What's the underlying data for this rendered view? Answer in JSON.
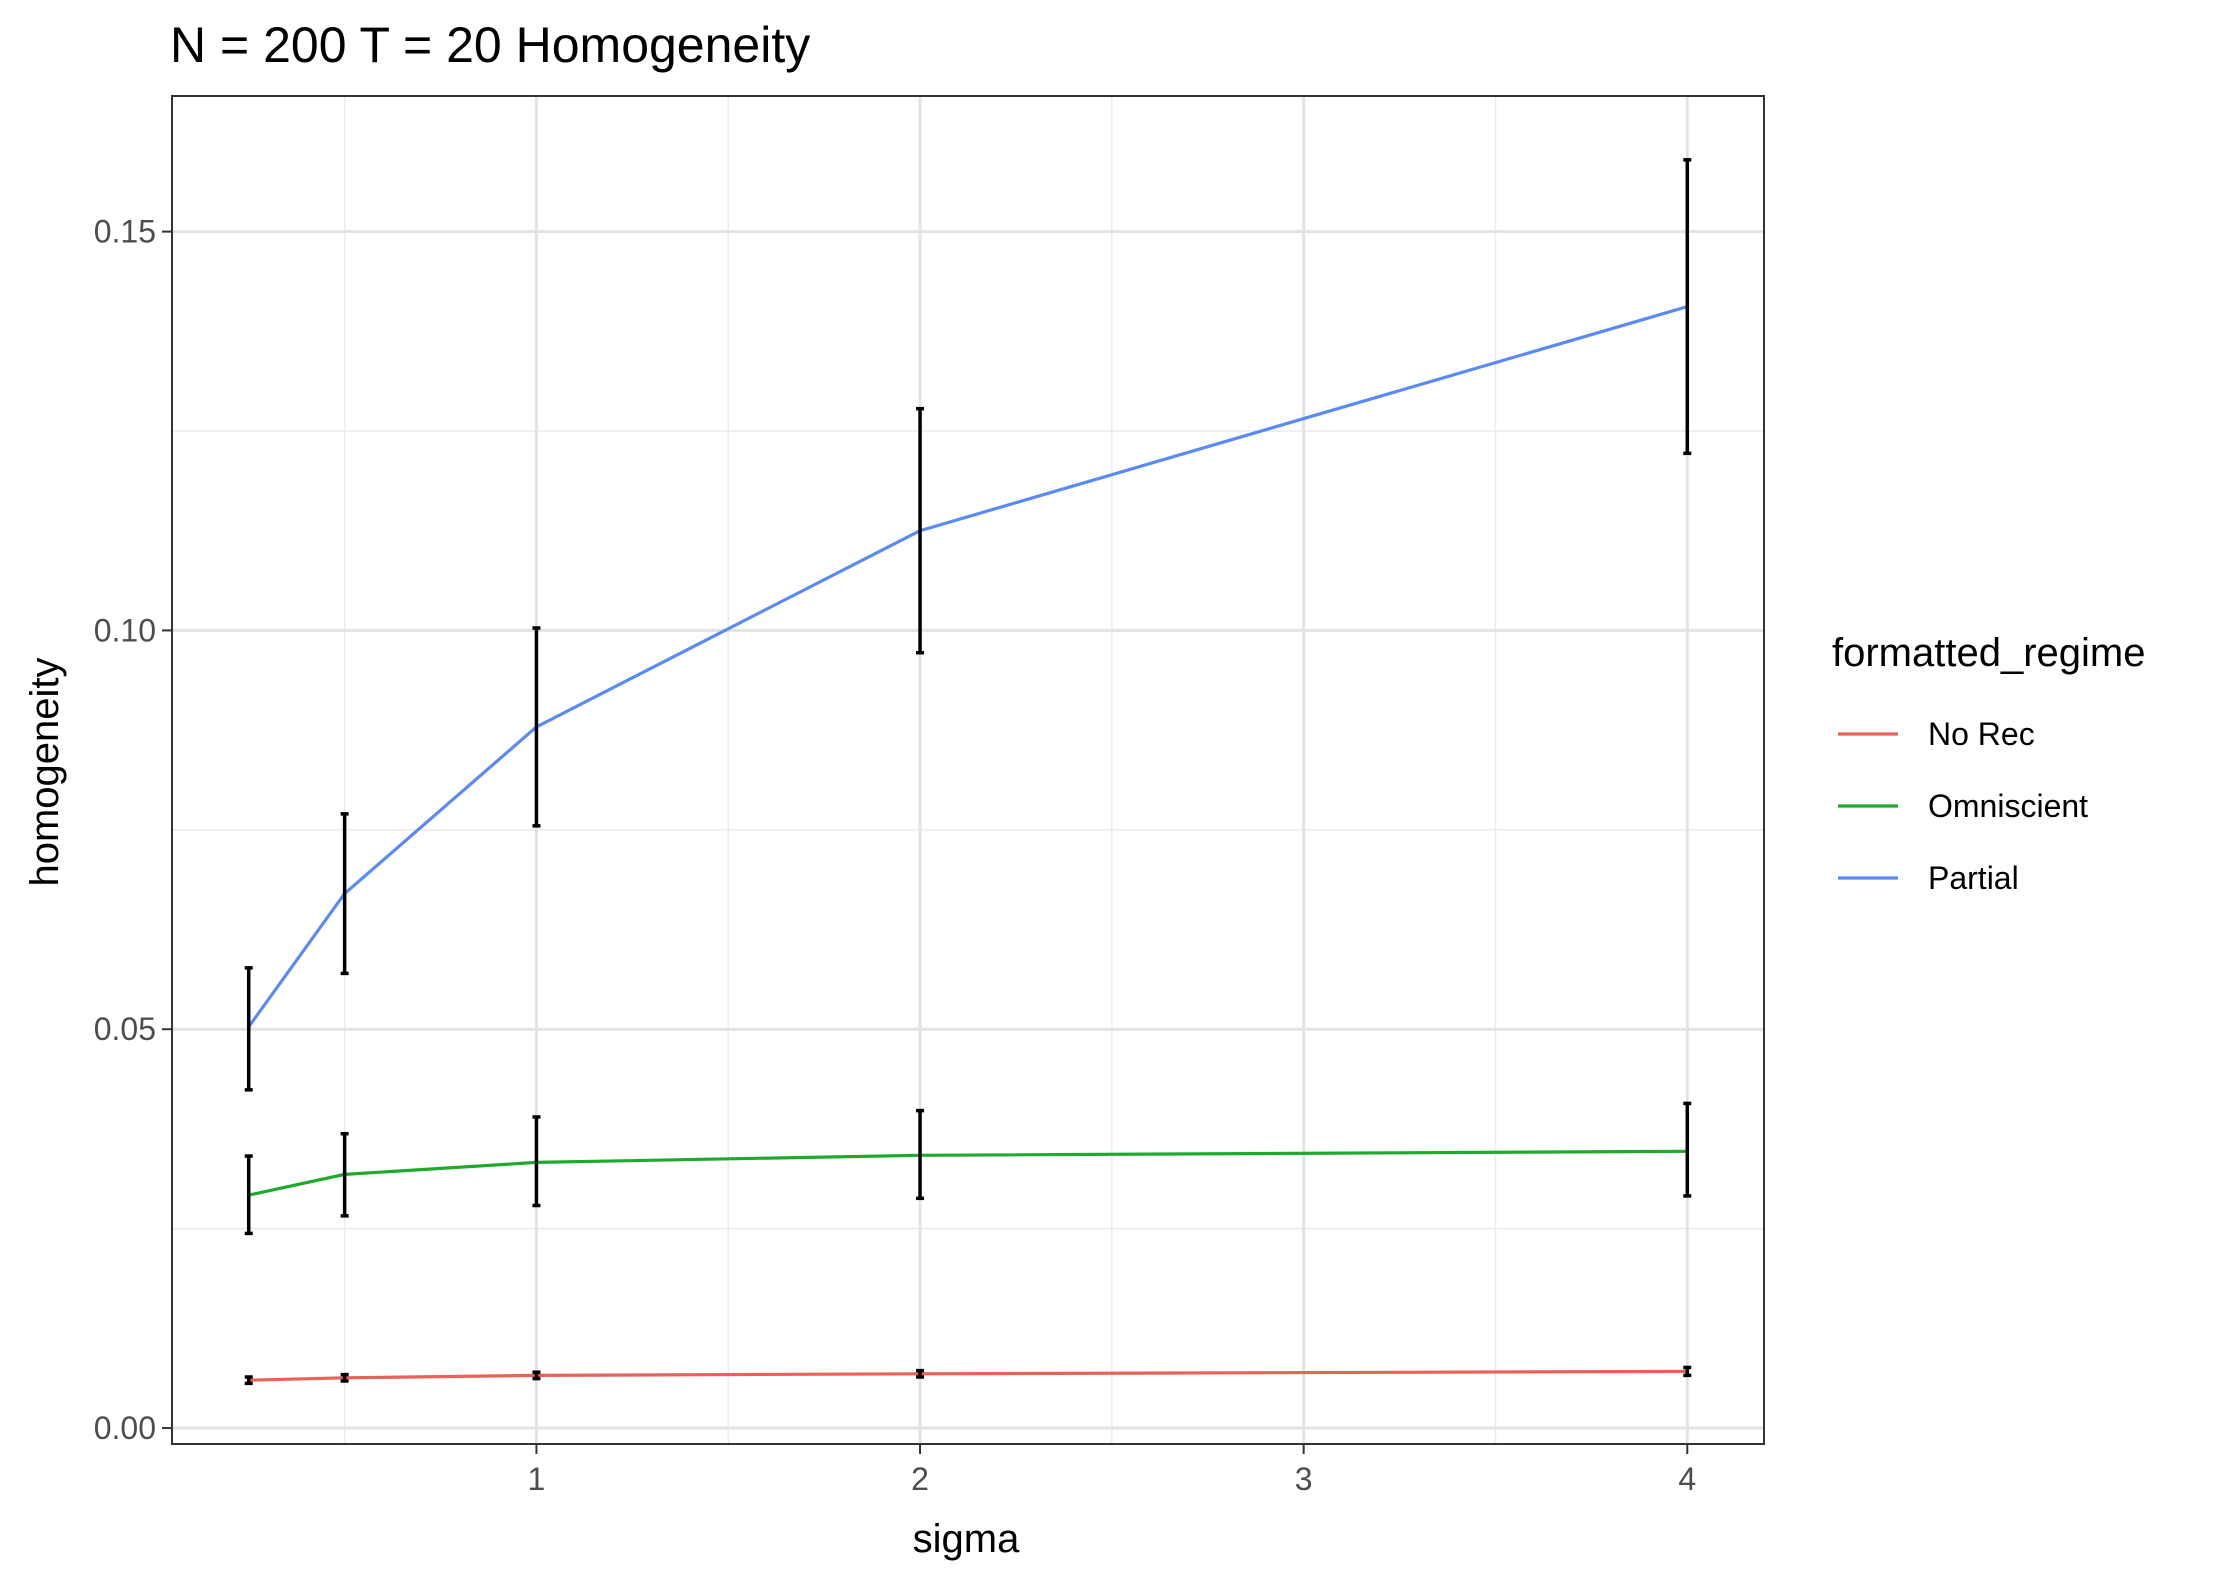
{
  "chart_data": {
    "type": "line",
    "title": "N = 200 T = 20 Homogeneity",
    "xlabel": "sigma",
    "ylabel": "homogeneity",
    "x": [
      0.25,
      0.5,
      1,
      2,
      4
    ],
    "xlim": [
      0.05,
      4.2
    ],
    "ylim": [
      -0.002,
      0.167
    ],
    "x_ticks": [
      1,
      2,
      3,
      4
    ],
    "x_tick_labels": [
      "1",
      "2",
      "3",
      "4"
    ],
    "x_minor_ticks": [
      0.5,
      1.5,
      2.5,
      3.5
    ],
    "y_ticks": [
      0,
      0.05,
      0.1,
      0.15
    ],
    "y_tick_labels": [
      "0.00",
      "0.05",
      "0.10",
      "0.15"
    ],
    "y_minor_ticks": [
      0.025,
      0.075,
      0.125
    ],
    "grid": true,
    "legend": {
      "title": "formatted_regime",
      "position": "right"
    },
    "series": [
      {
        "name": "No Rec",
        "color": "#E8625A",
        "values": [
          0.006,
          0.0063,
          0.0066,
          0.0068,
          0.0071
        ],
        "err_low": [
          0.0056,
          0.0059,
          0.0062,
          0.0064,
          0.0066
        ],
        "err_high": [
          0.0064,
          0.0067,
          0.007,
          0.0072,
          0.0076
        ]
      },
      {
        "name": "Omniscient",
        "color": "#1FAA2E",
        "values": [
          0.0292,
          0.0318,
          0.0333,
          0.0342,
          0.0347
        ],
        "err_low": [
          0.0244,
          0.0266,
          0.0279,
          0.0288,
          0.0291
        ],
        "err_high": [
          0.0341,
          0.0369,
          0.039,
          0.0398,
          0.0407
        ]
      },
      {
        "name": "Partial",
        "color": "#5B8AF0",
        "values": [
          0.0503,
          0.067,
          0.0879,
          0.1125,
          0.1406
        ],
        "err_low": [
          0.0424,
          0.057,
          0.0755,
          0.0972,
          0.1222
        ],
        "err_high": [
          0.0577,
          0.077,
          0.1003,
          0.1278,
          0.159
        ]
      }
    ]
  }
}
